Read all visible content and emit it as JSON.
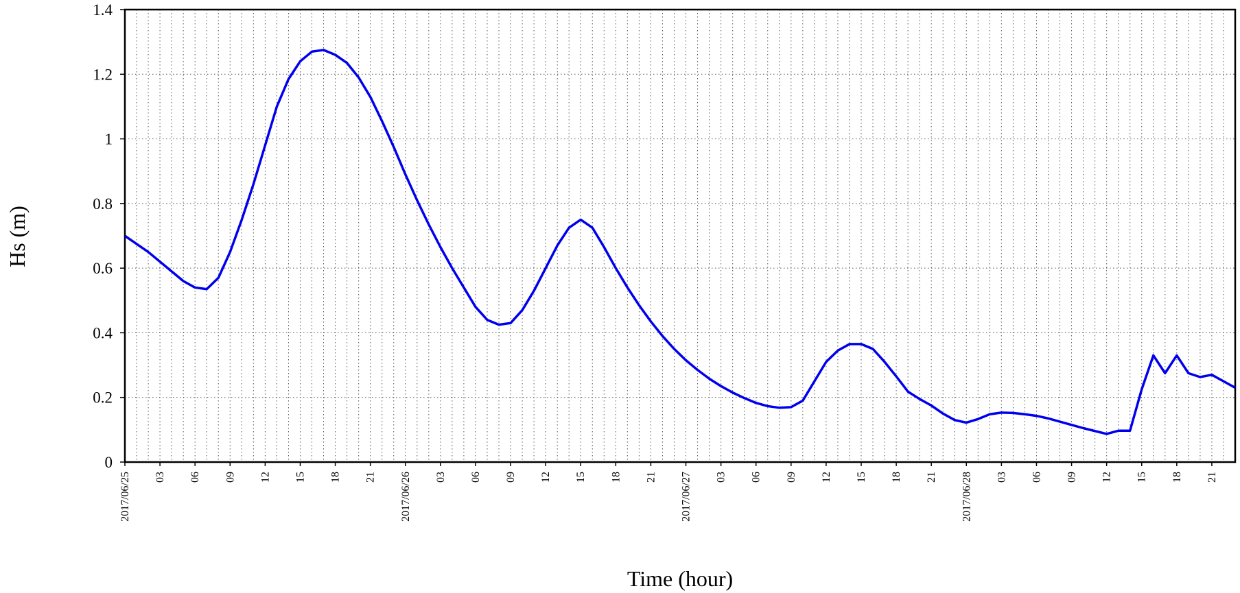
{
  "chart_data": {
    "type": "line",
    "xlabel": "Time (hour)",
    "ylabel": "Hs (m)",
    "x": [
      0,
      1,
      2,
      3,
      4,
      5,
      6,
      7,
      8,
      9,
      10,
      11,
      12,
      13,
      14,
      15,
      16,
      17,
      18,
      19,
      20,
      21,
      22,
      23,
      24,
      25,
      26,
      27,
      28,
      29,
      30,
      31,
      32,
      33,
      34,
      35,
      36,
      37,
      38,
      39,
      40,
      41,
      42,
      43,
      44,
      45,
      46,
      47,
      48,
      49,
      50,
      51,
      52,
      53,
      54,
      55,
      56,
      57,
      58,
      59,
      60,
      61,
      62,
      63,
      64,
      65,
      66,
      67,
      68,
      69,
      70,
      71,
      72,
      73,
      74,
      75,
      76,
      77,
      78,
      79,
      80,
      81,
      82,
      83,
      84,
      85,
      86,
      87,
      88,
      89,
      90,
      91,
      92,
      93,
      94,
      95
    ],
    "series": [
      {
        "name": "Hs",
        "color": "#0000ee",
        "values": [
          0.7,
          0.675,
          0.65,
          0.62,
          0.59,
          0.56,
          0.54,
          0.535,
          0.57,
          0.65,
          0.75,
          0.86,
          0.98,
          1.1,
          1.185,
          1.24,
          1.27,
          1.275,
          1.26,
          1.235,
          1.19,
          1.13,
          1.055,
          0.975,
          0.89,
          0.81,
          0.735,
          0.665,
          0.6,
          0.54,
          0.48,
          0.44,
          0.425,
          0.43,
          0.47,
          0.53,
          0.6,
          0.67,
          0.725,
          0.75,
          0.725,
          0.665,
          0.6,
          0.54,
          0.485,
          0.435,
          0.39,
          0.35,
          0.315,
          0.285,
          0.258,
          0.235,
          0.215,
          0.198,
          0.183,
          0.173,
          0.168,
          0.17,
          0.19,
          0.25,
          0.31,
          0.345,
          0.365,
          0.365,
          0.35,
          0.31,
          0.265,
          0.218,
          0.195,
          0.175,
          0.15,
          0.13,
          0.122,
          0.133,
          0.148,
          0.153,
          0.152,
          0.148,
          0.143,
          0.135,
          0.125,
          0.115,
          0.105,
          0.096,
          0.087,
          0.097,
          0.097,
          0.225,
          0.33,
          0.275,
          0.33,
          0.275,
          0.263,
          0.27,
          0.25,
          0.23
        ]
      }
    ],
    "xlim": [
      0,
      95
    ],
    "xticks": [
      {
        "value": 0,
        "label": "2017/06/25"
      },
      {
        "value": 3,
        "label": "03"
      },
      {
        "value": 6,
        "label": "06"
      },
      {
        "value": 9,
        "label": "09"
      },
      {
        "value": 12,
        "label": "12"
      },
      {
        "value": 15,
        "label": "15"
      },
      {
        "value": 18,
        "label": "18"
      },
      {
        "value": 21,
        "label": "21"
      },
      {
        "value": 24,
        "label": "2017/06/26"
      },
      {
        "value": 27,
        "label": "03"
      },
      {
        "value": 30,
        "label": "06"
      },
      {
        "value": 33,
        "label": "09"
      },
      {
        "value": 36,
        "label": "12"
      },
      {
        "value": 39,
        "label": "15"
      },
      {
        "value": 42,
        "label": "18"
      },
      {
        "value": 45,
        "label": "21"
      },
      {
        "value": 48,
        "label": "2017/06/27"
      },
      {
        "value": 51,
        "label": "03"
      },
      {
        "value": 54,
        "label": "06"
      },
      {
        "value": 57,
        "label": "09"
      },
      {
        "value": 60,
        "label": "12"
      },
      {
        "value": 63,
        "label": "15"
      },
      {
        "value": 66,
        "label": "18"
      },
      {
        "value": 69,
        "label": "21"
      },
      {
        "value": 72,
        "label": "2017/06/28"
      },
      {
        "value": 75,
        "label": "03"
      },
      {
        "value": 78,
        "label": "06"
      },
      {
        "value": 81,
        "label": "09"
      },
      {
        "value": 84,
        "label": "12"
      },
      {
        "value": 87,
        "label": "15"
      },
      {
        "value": 90,
        "label": "18"
      },
      {
        "value": 93,
        "label": "21"
      }
    ],
    "ylim": [
      0,
      1.4
    ],
    "yticks": [
      0,
      0.2,
      0.4,
      0.6,
      0.8,
      1,
      1.2,
      1.4
    ],
    "grid": true
  }
}
